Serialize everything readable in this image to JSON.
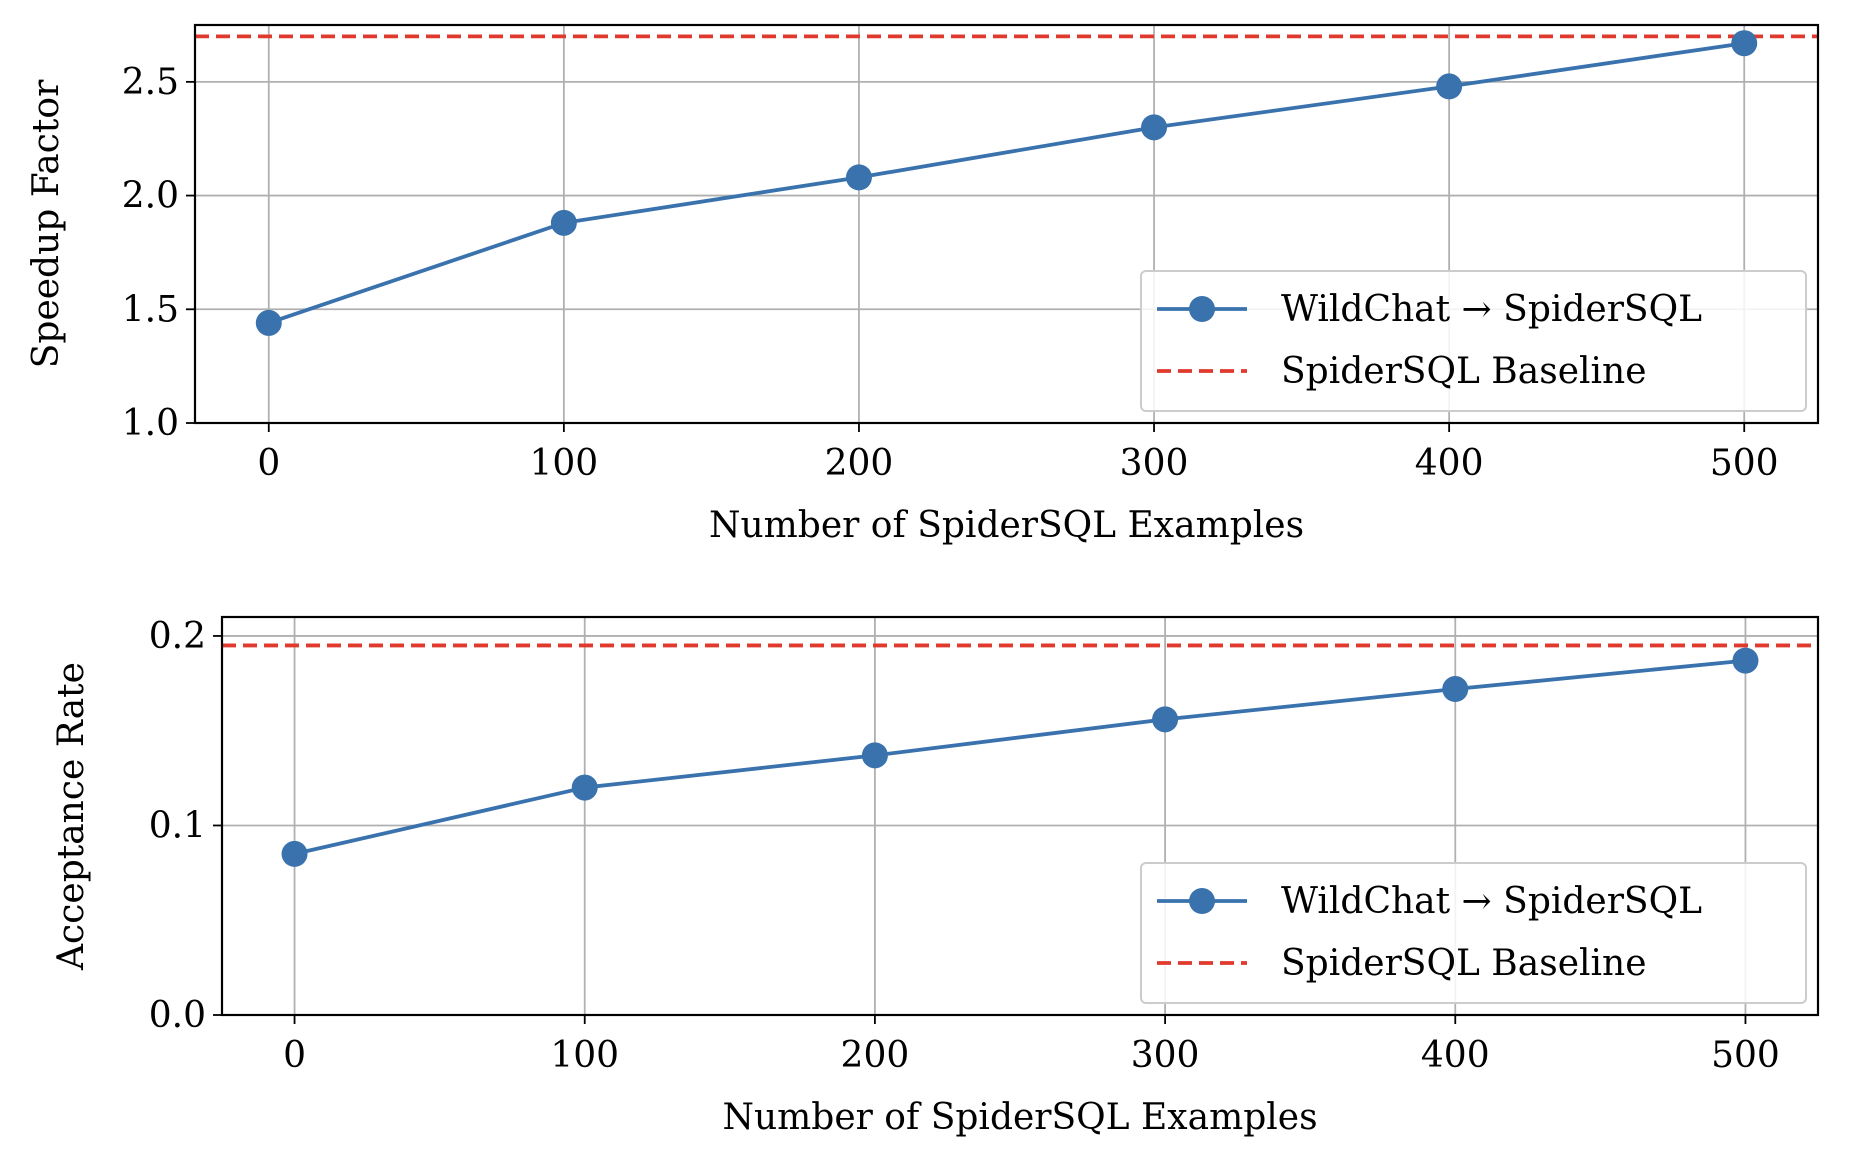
{
  "chart_data": [
    {
      "type": "line",
      "title": "",
      "xlabel": "Number of SpiderSQL Examples",
      "ylabel": "Speedup Factor",
      "x": [
        0,
        100,
        200,
        300,
        400,
        500
      ],
      "xlim": [
        -25,
        525
      ],
      "ylim": [
        1.0,
        2.75
      ],
      "xticks": [
        0,
        100,
        200,
        300,
        400,
        500
      ],
      "yticks": [
        1.0,
        1.5,
        2.0,
        2.5
      ],
      "ytick_labels": [
        "1.0",
        "1.5",
        "2.0",
        "2.5"
      ],
      "grid": true,
      "legend_position": "lower-right",
      "series": [
        {
          "name": "WildChat → SpiderSQL",
          "style": "solid-marker",
          "color": "#3a72ad",
          "values": [
            1.44,
            1.88,
            2.08,
            2.3,
            2.48,
            2.67
          ]
        }
      ],
      "hlines": [
        {
          "name": "SpiderSQL Baseline",
          "style": "dashed",
          "color": "#e03a2f",
          "value": 2.7
        }
      ]
    },
    {
      "type": "line",
      "title": "",
      "xlabel": "Number of SpiderSQL Examples",
      "ylabel": "Acceptance Rate",
      "x": [
        0,
        100,
        200,
        300,
        400,
        500
      ],
      "xlim": [
        -25,
        525
      ],
      "ylim": [
        0.0,
        0.21
      ],
      "xticks": [
        0,
        100,
        200,
        300,
        400,
        500
      ],
      "yticks": [
        0.0,
        0.1,
        0.2
      ],
      "ytick_labels": [
        "0.0",
        "0.1",
        "0.2"
      ],
      "grid": true,
      "legend_position": "lower-right",
      "series": [
        {
          "name": "WildChat → SpiderSQL",
          "style": "solid-marker",
          "color": "#3a72ad",
          "values": [
            0.085,
            0.12,
            0.137,
            0.156,
            0.172,
            0.187
          ]
        }
      ],
      "hlines": [
        {
          "name": "SpiderSQL Baseline",
          "style": "dashed",
          "color": "#e03a2f",
          "value": 0.195
        }
      ]
    }
  ]
}
